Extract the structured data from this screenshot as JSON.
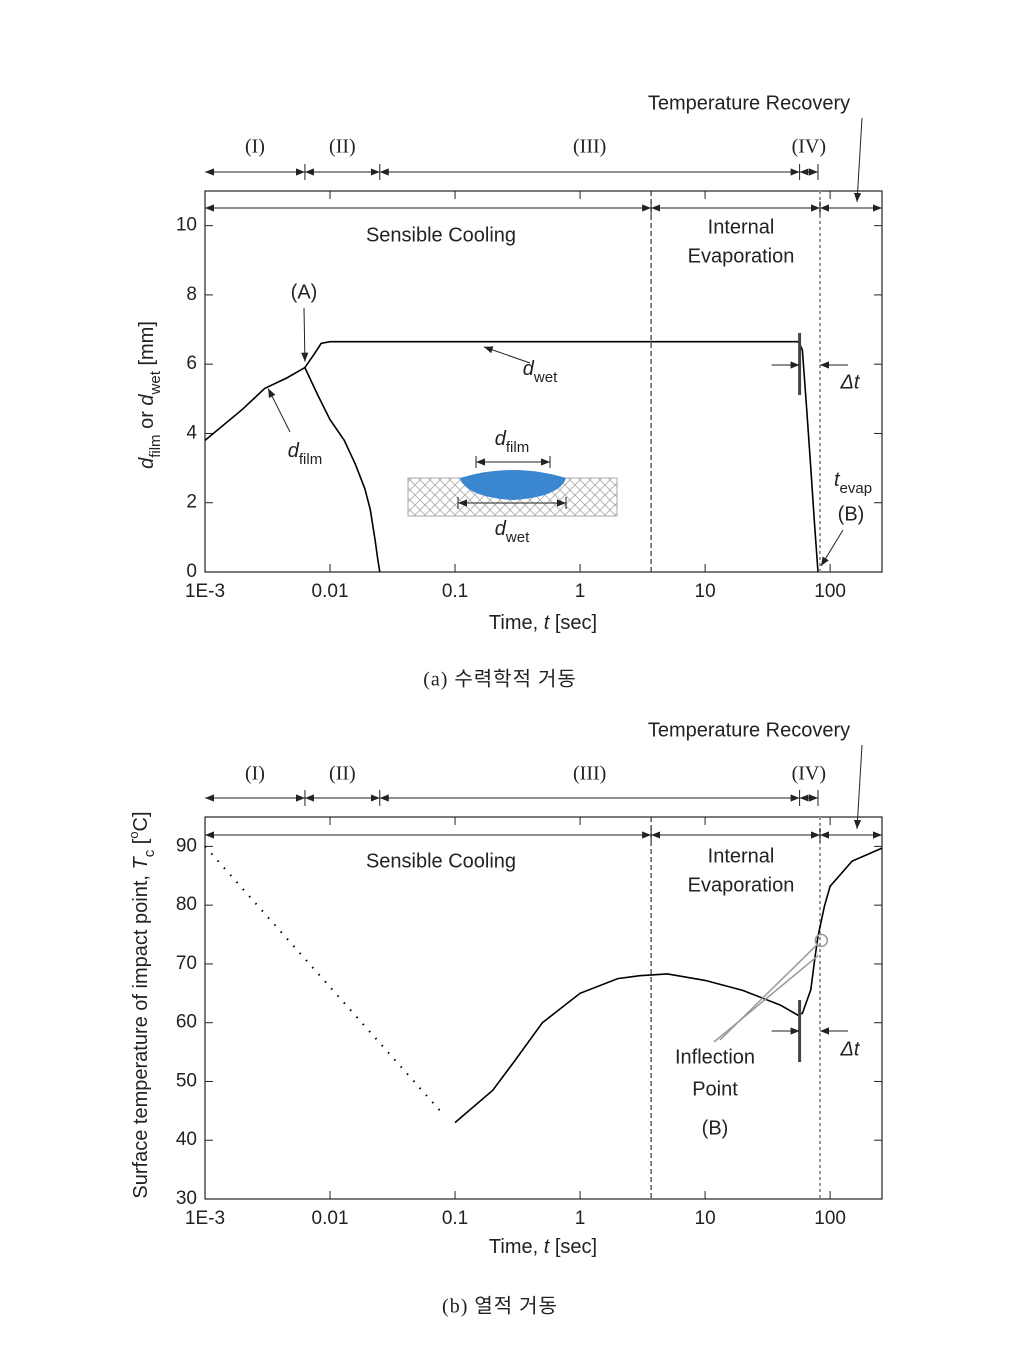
{
  "chart_data": [
    {
      "type": "line",
      "x_scale": "log",
      "xlim": [
        0.001,
        260
      ],
      "xticks": [
        {
          "value": 0.001,
          "label": "1E-3"
        },
        0.01,
        0.1,
        1,
        10,
        100
      ],
      "ylim": [
        0,
        11
      ],
      "yticks": [
        0,
        2,
        4,
        6,
        8,
        10
      ],
      "xlabel": {
        "parts": [
          {
            "text": "Time, "
          },
          {
            "text": "t",
            "italic": true
          },
          {
            "text": " [sec]"
          }
        ]
      },
      "ylabel": {
        "parts": [
          {
            "text": "d",
            "italic": true
          },
          {
            "text": "film",
            "sub": true
          },
          {
            "text": " or "
          },
          {
            "text": "d",
            "italic": true
          },
          {
            "text": "wet",
            "sub": true
          },
          {
            "text": " [mm]"
          }
        ]
      },
      "caption": "(a) 수력학적 거동",
      "phases": {
        "labels": [
          "(I)",
          "(II)",
          "(III)",
          "(IV)"
        ],
        "bounds": [
          0.001,
          0.0063,
          0.025,
          57,
          80
        ]
      },
      "regions": [
        {
          "lines": [
            "Sensible Cooling"
          ],
          "from": 0.001,
          "to": 3.7
        },
        {
          "lines": [
            "Internal",
            "Evaporation"
          ],
          "from": 3.7,
          "to": 83
        },
        {
          "lines": [
            "Temperature Recovery"
          ],
          "from": 83,
          "to": 260
        }
      ],
      "vlines": [
        {
          "x": 3.7,
          "color": "#333333"
        },
        {
          "x": 83,
          "color": "#999999"
        }
      ],
      "series": [
        {
          "color": "#000000",
          "label": {
            "parts": [
              {
                "text": "d",
                "italic": true
              },
              {
                "text": "film",
                "sub": true
              }
            ],
            "x": 0.0032,
            "y": 5.3
          },
          "x": [
            0.001,
            0.002,
            0.003,
            0.0045,
            0.0063,
            0.008,
            0.01,
            0.013,
            0.016,
            0.019,
            0.021,
            0.023,
            0.024,
            0.025
          ],
          "values": [
            3.8,
            4.7,
            5.3,
            5.6,
            5.9,
            5.1,
            4.4,
            3.8,
            3.1,
            2.4,
            1.8,
            0.9,
            0.4,
            0
          ]
        },
        {
          "color": "#000000",
          "label": {
            "parts": [
              {
                "text": "d",
                "italic": true
              },
              {
                "text": "wet",
                "sub": true
              }
            ],
            "x": 0.17,
            "y": 6.5
          },
          "x": [
            0.0063,
            0.0075,
            0.0085,
            0.01,
            0.02,
            55,
            57,
            60,
            65,
            70,
            75,
            80
          ],
          "values": [
            5.9,
            6.3,
            6.6,
            6.65,
            6.65,
            6.65,
            6.6,
            6.4,
            4.7,
            3.0,
            1.4,
            0
          ]
        }
      ],
      "delta_t": {
        "label": "Δt",
        "from": 57,
        "to": 83
      },
      "annotations": [
        {
          "text": "(A)",
          "x": 0.0063,
          "y": 5.9
        },
        {
          "parts": [
            {
              "text": "t",
              "italic": true
            },
            {
              "text": "evap",
              "sub": true
            }
          ]
        },
        {
          "text": "(B)",
          "x": 80,
          "y": 0
        }
      ],
      "inset": {
        "top": {
          "parts": [
            {
              "text": "d",
              "italic": true
            },
            {
              "text": "film",
              "sub": true
            }
          ]
        },
        "bottom": {
          "parts": [
            {
              "text": "d",
              "italic": true
            },
            {
              "text": "wet",
              "sub": true
            }
          ]
        },
        "color": "#3a86cf"
      }
    },
    {
      "type": "line",
      "x_scale": "log",
      "xlim": [
        0.001,
        260
      ],
      "xticks": [
        {
          "value": 0.001,
          "label": "1E-3"
        },
        0.01,
        0.1,
        1,
        10,
        100
      ],
      "ylim": [
        30,
        95
      ],
      "yticks": [
        30,
        40,
        50,
        60,
        70,
        80,
        90
      ],
      "xlabel": {
        "parts": [
          {
            "text": "Time, "
          },
          {
            "text": "t",
            "italic": true
          },
          {
            "text": " [sec]"
          }
        ]
      },
      "ylabel": {
        "parts": [
          {
            "text": "Surface temperature of impact point, "
          },
          {
            "text": "T",
            "italic": true
          },
          {
            "text": "c",
            "sub": true
          },
          {
            "text": " ["
          },
          {
            "text": "o",
            "sup": true
          },
          {
            "text": "C]"
          }
        ]
      },
      "caption": "(b) 열적 거동",
      "phases": {
        "labels": [
          "(I)",
          "(II)",
          "(III)",
          "(IV)"
        ],
        "bounds": [
          0.001,
          0.0063,
          0.025,
          57,
          80
        ]
      },
      "regions": [
        {
          "lines": [
            "Sensible Cooling"
          ],
          "from": 0.001,
          "to": 3.7
        },
        {
          "lines": [
            "Internal",
            "Evaporation"
          ],
          "from": 3.7,
          "to": 83
        },
        {
          "lines": [
            "Temperature Recovery"
          ],
          "from": 83,
          "to": 260
        }
      ],
      "vlines": [
        {
          "x": 3.7,
          "color": "#333333"
        },
        {
          "x": 83,
          "color": "#999999"
        }
      ],
      "series": [
        {
          "color": "#000000",
          "style": "dotted",
          "x": [
            0.001,
            0.076
          ],
          "values": [
            90,
            45
          ]
        },
        {
          "color": "#000000",
          "x": [
            0.1,
            0.2,
            0.3,
            0.5,
            1,
            2,
            3,
            5,
            10,
            20,
            40,
            55,
            60,
            70,
            75,
            80,
            90,
            100,
            150,
            260
          ],
          "values": [
            43,
            48.5,
            53.5,
            60,
            65,
            67.5,
            68,
            68.3,
            67.2,
            65.5,
            63,
            61.3,
            61.6,
            65.6,
            70.5,
            74.7,
            79.8,
            83.2,
            87.5,
            89.7
          ]
        }
      ],
      "delta_t": {
        "label": "Δt",
        "from": 57,
        "to": 83
      },
      "annotations": [
        {
          "lines": [
            "Inflection",
            "Point",
            "(B)"
          ],
          "x": 85,
          "y": 74
        }
      ]
    }
  ]
}
